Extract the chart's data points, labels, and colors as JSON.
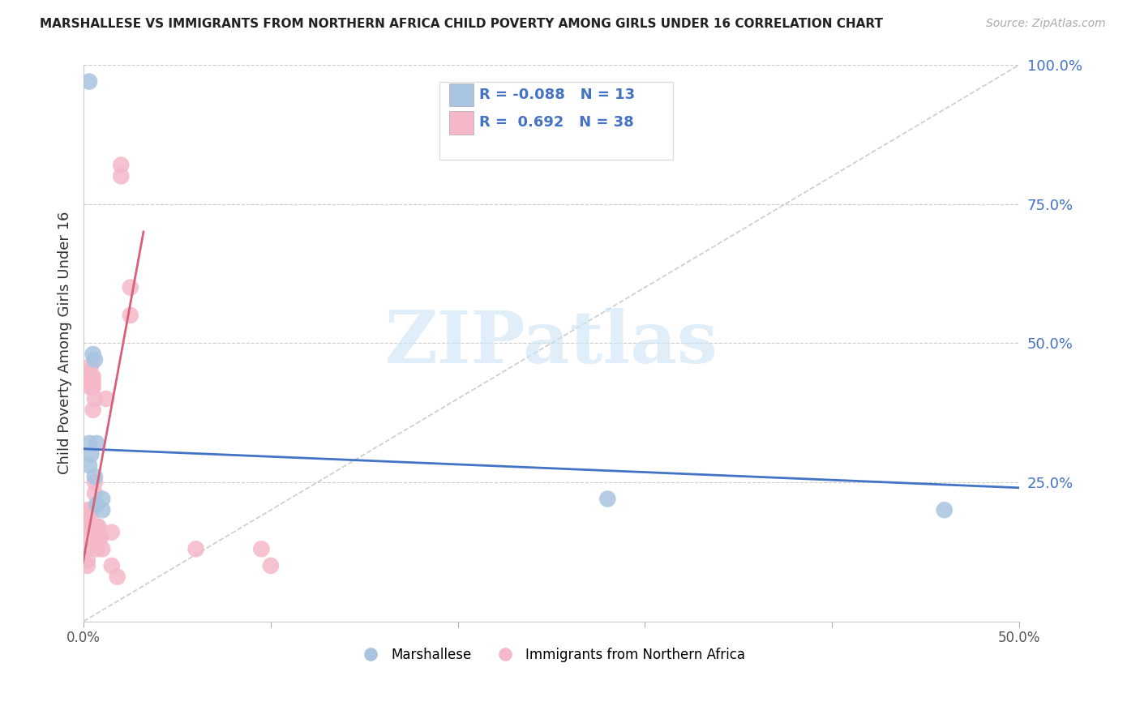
{
  "title": "MARSHALLESE VS IMMIGRANTS FROM NORTHERN AFRICA CHILD POVERTY AMONG GIRLS UNDER 16 CORRELATION CHART",
  "source": "Source: ZipAtlas.com",
  "ylabel": "Child Poverty Among Girls Under 16",
  "xlim": [
    0.0,
    0.5
  ],
  "ylim": [
    0.0,
    1.0
  ],
  "yticks": [
    0.0,
    0.25,
    0.5,
    0.75,
    1.0
  ],
  "ytick_labels": [
    "",
    "25.0%",
    "50.0%",
    "75.0%",
    "100.0%"
  ],
  "xticks": [
    0.0,
    0.1,
    0.2,
    0.3,
    0.4,
    0.5
  ],
  "xtick_labels": [
    "0.0%",
    "",
    "",
    "",
    "",
    "50.0%"
  ],
  "watermark": "ZIPatlas",
  "legend_blue_r": "-0.088",
  "legend_blue_n": "13",
  "legend_pink_r": "0.692",
  "legend_pink_n": "38",
  "blue_color": "#a8c4e0",
  "pink_color": "#f4b8c8",
  "blue_line_color": "#4472c4",
  "pink_line_color": "#d9607a",
  "blue_scatter": [
    [
      0.003,
      0.97
    ],
    [
      0.003,
      0.32
    ],
    [
      0.003,
      0.28
    ],
    [
      0.004,
      0.3
    ],
    [
      0.005,
      0.48
    ],
    [
      0.006,
      0.47
    ],
    [
      0.006,
      0.26
    ],
    [
      0.007,
      0.32
    ],
    [
      0.007,
      0.21
    ],
    [
      0.01,
      0.22
    ],
    [
      0.01,
      0.2
    ],
    [
      0.28,
      0.22
    ],
    [
      0.46,
      0.2
    ]
  ],
  "pink_scatter": [
    [
      0.002,
      0.2
    ],
    [
      0.002,
      0.18
    ],
    [
      0.002,
      0.17
    ],
    [
      0.002,
      0.15
    ],
    [
      0.002,
      0.13
    ],
    [
      0.002,
      0.11
    ],
    [
      0.002,
      0.1
    ],
    [
      0.003,
      0.45
    ],
    [
      0.003,
      0.43
    ],
    [
      0.004,
      0.46
    ],
    [
      0.004,
      0.44
    ],
    [
      0.004,
      0.42
    ],
    [
      0.004,
      0.2
    ],
    [
      0.004,
      0.18
    ],
    [
      0.005,
      0.44
    ],
    [
      0.005,
      0.43
    ],
    [
      0.005,
      0.42
    ],
    [
      0.005,
      0.38
    ],
    [
      0.006,
      0.4
    ],
    [
      0.006,
      0.25
    ],
    [
      0.006,
      0.23
    ],
    [
      0.007,
      0.17
    ],
    [
      0.007,
      0.13
    ],
    [
      0.008,
      0.17
    ],
    [
      0.008,
      0.15
    ],
    [
      0.009,
      0.15
    ],
    [
      0.01,
      0.13
    ],
    [
      0.012,
      0.4
    ],
    [
      0.015,
      0.16
    ],
    [
      0.015,
      0.1
    ],
    [
      0.018,
      0.08
    ],
    [
      0.02,
      0.82
    ],
    [
      0.02,
      0.8
    ],
    [
      0.025,
      0.6
    ],
    [
      0.025,
      0.55
    ],
    [
      0.06,
      0.13
    ],
    [
      0.095,
      0.13
    ],
    [
      0.1,
      0.1
    ]
  ],
  "blue_line_x": [
    0.0,
    0.5
  ],
  "blue_line_y": [
    0.31,
    0.24
  ],
  "pink_line_x": [
    -0.005,
    0.032
  ],
  "pink_line_y": [
    0.02,
    0.7
  ],
  "diag_line_x": [
    0.0,
    0.5
  ],
  "diag_line_y": [
    0.0,
    1.0
  ],
  "background_color": "#ffffff",
  "grid_color": "#cccccc"
}
